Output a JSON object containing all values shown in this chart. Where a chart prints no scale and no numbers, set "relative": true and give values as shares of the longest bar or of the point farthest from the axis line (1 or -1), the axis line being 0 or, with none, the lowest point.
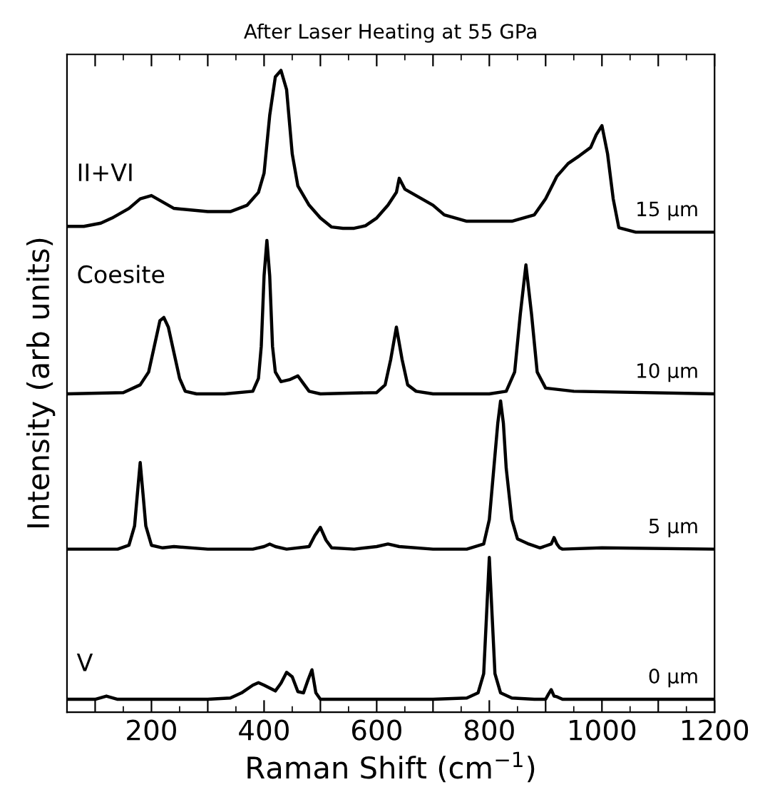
{
  "chart_data": {
    "type": "line",
    "title": "After Laser Heating at 55 GPa",
    "xlabel": "Raman Shift (cm$^{−1}$)",
    "ylabel": "Intensity (arb units)",
    "relative": true,
    "xlim": [
      50,
      1200
    ],
    "xticks": [
      {
        "value": 100,
        "label": null
      },
      200,
      {
        "value": 300,
        "label": null
      },
      400,
      {
        "value": 500,
        "label": null
      },
      600,
      {
        "value": 700,
        "label": null
      },
      800,
      {
        "value": 900,
        "label": null
      },
      1000,
      {
        "value": 1100,
        "label": null
      },
      1200
    ],
    "tick_labels": "x",
    "grid": false,
    "legend": false,
    "marker": "none",
    "line_style": "solid",
    "annotations": [
      "II+VI",
      "Coesite",
      "V"
    ],
    "series": [
      {
        "name": "0 µm",
        "color": "#000000",
        "x": [
          50,
          100,
          120,
          140,
          200,
          300,
          340,
          360,
          380,
          390,
          400,
          420,
          430,
          440,
          450,
          460,
          470,
          478,
          485,
          492,
          500,
          550,
          700,
          760,
          780,
          790,
          795,
          800,
          805,
          810,
          820,
          840,
          880,
          900,
          905,
          910,
          915,
          920,
          930,
          1000,
          1100,
          1200
        ],
        "values": [
          0.02,
          0.02,
          0.025,
          0.02,
          0.02,
          0.02,
          0.022,
          0.03,
          0.042,
          0.046,
          0.042,
          0.033,
          0.045,
          0.062,
          0.055,
          0.032,
          0.03,
          0.05,
          0.066,
          0.03,
          0.02,
          0.02,
          0.02,
          0.022,
          0.03,
          0.06,
          0.15,
          0.241,
          0.15,
          0.06,
          0.03,
          0.022,
          0.02,
          0.02,
          0.028,
          0.035,
          0.025,
          0.024,
          0.02,
          0.02,
          0.02,
          0.02
        ]
      },
      {
        "name": "5 µm",
        "color": "#000000",
        "x": [
          50,
          140,
          160,
          170,
          175,
          180,
          185,
          190,
          200,
          220,
          240,
          300,
          380,
          400,
          410,
          420,
          440,
          480,
          490,
          500,
          510,
          520,
          560,
          600,
          620,
          640,
          700,
          760,
          790,
          800,
          810,
          815,
          820,
          825,
          830,
          840,
          850,
          870,
          890,
          910,
          915,
          920,
          925,
          930,
          1000,
          1200
        ],
        "values": [
          0.254,
          0.254,
          0.26,
          0.29,
          0.34,
          0.389,
          0.34,
          0.29,
          0.26,
          0.256,
          0.258,
          0.254,
          0.254,
          0.258,
          0.262,
          0.258,
          0.254,
          0.258,
          0.275,
          0.288,
          0.268,
          0.256,
          0.254,
          0.258,
          0.262,
          0.258,
          0.254,
          0.254,
          0.262,
          0.3,
          0.4,
          0.45,
          0.485,
          0.45,
          0.38,
          0.3,
          0.27,
          0.262,
          0.256,
          0.262,
          0.272,
          0.262,
          0.256,
          0.254,
          0.256,
          0.254
        ]
      },
      {
        "name": "10 µm",
        "color": "#000000",
        "x": [
          50,
          150,
          180,
          195,
          205,
          215,
          222,
          230,
          240,
          250,
          260,
          280,
          330,
          380,
          390,
          395,
          400,
          405,
          410,
          415,
          420,
          430,
          445,
          460,
          470,
          480,
          500,
          600,
          615,
          625,
          635,
          645,
          655,
          670,
          700,
          800,
          830,
          845,
          855,
          865,
          875,
          885,
          900,
          950,
          1200
        ],
        "values": [
          0.496,
          0.498,
          0.51,
          0.53,
          0.57,
          0.61,
          0.615,
          0.6,
          0.56,
          0.52,
          0.5,
          0.496,
          0.496,
          0.5,
          0.52,
          0.57,
          0.68,
          0.735,
          0.68,
          0.57,
          0.53,
          0.515,
          0.518,
          0.524,
          0.512,
          0.5,
          0.496,
          0.498,
          0.51,
          0.55,
          0.6,
          0.55,
          0.51,
          0.5,
          0.496,
          0.496,
          0.5,
          0.53,
          0.62,
          0.697,
          0.62,
          0.53,
          0.505,
          0.5,
          0.496
        ]
      },
      {
        "name": "15 µm",
        "color": "#000000",
        "x": [
          50,
          80,
          110,
          130,
          160,
          180,
          200,
          220,
          240,
          300,
          340,
          370,
          390,
          400,
          410,
          420,
          430,
          440,
          450,
          460,
          480,
          500,
          520,
          540,
          560,
          580,
          600,
          620,
          635,
          640,
          650,
          680,
          700,
          720,
          760,
          800,
          840,
          880,
          900,
          920,
          940,
          960,
          980,
          990,
          1000,
          1010,
          1020,
          1030,
          1060,
          1200
        ],
        "values": [
          0.757,
          0.757,
          0.762,
          0.77,
          0.785,
          0.8,
          0.805,
          0.795,
          0.785,
          0.78,
          0.78,
          0.79,
          0.81,
          0.84,
          0.93,
          0.99,
          1.0,
          0.97,
          0.87,
          0.82,
          0.79,
          0.77,
          0.756,
          0.754,
          0.754,
          0.758,
          0.77,
          0.79,
          0.81,
          0.832,
          0.815,
          0.8,
          0.79,
          0.775,
          0.765,
          0.765,
          0.765,
          0.775,
          0.8,
          0.835,
          0.855,
          0.867,
          0.88,
          0.9,
          0.914,
          0.87,
          0.8,
          0.755,
          0.748,
          0.748
        ]
      }
    ]
  }
}
